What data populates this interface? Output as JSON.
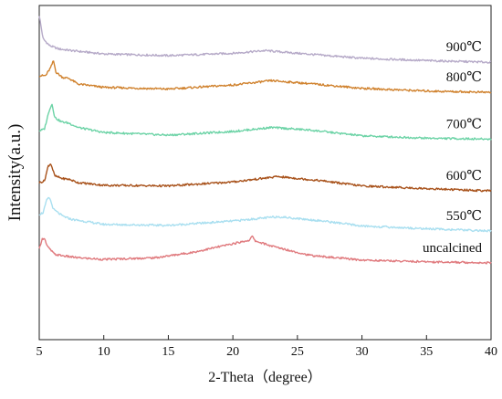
{
  "chart_data": {
    "type": "line",
    "xlabel": "2-Theta（degree）",
    "ylabel": "Intensity(a.u.)",
    "xlim": [
      5,
      40
    ],
    "x_ticks": [
      5,
      10,
      15,
      20,
      25,
      30,
      35,
      40
    ],
    "y_ticks_shown": false,
    "grid": false,
    "series": [
      {
        "name": "900℃",
        "color": "#b6aac8",
        "points": [
          [
            5.0,
            0.97
          ],
          [
            5.3,
            0.9
          ],
          [
            5.8,
            0.88
          ],
          [
            6.5,
            0.87
          ],
          [
            7.5,
            0.865
          ],
          [
            10,
            0.855
          ],
          [
            15,
            0.85
          ],
          [
            20,
            0.857
          ],
          [
            22.5,
            0.865
          ],
          [
            25,
            0.857
          ],
          [
            30,
            0.842
          ],
          [
            35,
            0.835
          ],
          [
            40,
            0.83
          ]
        ]
      },
      {
        "name": "800℃",
        "color": "#d0822e",
        "points": [
          [
            5.0,
            0.79
          ],
          [
            5.5,
            0.79
          ],
          [
            5.9,
            0.815
          ],
          [
            6.1,
            0.835
          ],
          [
            6.3,
            0.8
          ],
          [
            6.8,
            0.785
          ],
          [
            7.3,
            0.782
          ],
          [
            8,
            0.765
          ],
          [
            10,
            0.755
          ],
          [
            15,
            0.75
          ],
          [
            20,
            0.762
          ],
          [
            23,
            0.775
          ],
          [
            26,
            0.766
          ],
          [
            30,
            0.752
          ],
          [
            35,
            0.744
          ],
          [
            40,
            0.74
          ]
        ]
      },
      {
        "name": "700℃",
        "color": "#6cd3a6",
        "points": [
          [
            5.0,
            0.625
          ],
          [
            5.4,
            0.63
          ],
          [
            5.8,
            0.69
          ],
          [
            6.0,
            0.705
          ],
          [
            6.2,
            0.665
          ],
          [
            6.7,
            0.652
          ],
          [
            7.3,
            0.648
          ],
          [
            8,
            0.635
          ],
          [
            10,
            0.62
          ],
          [
            15,
            0.612
          ],
          [
            20,
            0.623
          ],
          [
            23,
            0.635
          ],
          [
            26,
            0.627
          ],
          [
            30,
            0.61
          ],
          [
            35,
            0.603
          ],
          [
            40,
            0.6
          ]
        ]
      },
      {
        "name": "600℃",
        "color": "#a8521b",
        "points": [
          [
            5.0,
            0.47
          ],
          [
            5.4,
            0.475
          ],
          [
            5.7,
            0.52
          ],
          [
            5.9,
            0.527
          ],
          [
            6.2,
            0.49
          ],
          [
            6.8,
            0.482
          ],
          [
            7.3,
            0.48
          ],
          [
            8,
            0.47
          ],
          [
            10,
            0.462
          ],
          [
            15,
            0.46
          ],
          [
            20,
            0.472
          ],
          [
            23.5,
            0.488
          ],
          [
            27,
            0.475
          ],
          [
            30,
            0.46
          ],
          [
            35,
            0.452
          ],
          [
            40,
            0.445
          ]
        ]
      },
      {
        "name": "550℃",
        "color": "#a9dff0",
        "points": [
          [
            5.0,
            0.375
          ],
          [
            5.3,
            0.38
          ],
          [
            5.6,
            0.42
          ],
          [
            5.8,
            0.425
          ],
          [
            6.1,
            0.39
          ],
          [
            6.8,
            0.37
          ],
          [
            7.5,
            0.36
          ],
          [
            10,
            0.345
          ],
          [
            15,
            0.342
          ],
          [
            20,
            0.355
          ],
          [
            23.5,
            0.368
          ],
          [
            27,
            0.355
          ],
          [
            30,
            0.34
          ],
          [
            35,
            0.332
          ],
          [
            40,
            0.325
          ]
        ]
      },
      {
        "name": "uncalcined",
        "color": "#e07a7e",
        "points": [
          [
            5.0,
            0.27
          ],
          [
            5.2,
            0.3
          ],
          [
            5.4,
            0.305
          ],
          [
            5.6,
            0.28
          ],
          [
            6.2,
            0.255
          ],
          [
            7,
            0.25
          ],
          [
            8,
            0.245
          ],
          [
            10,
            0.24
          ],
          [
            14,
            0.245
          ],
          [
            17,
            0.262
          ],
          [
            20,
            0.287
          ],
          [
            21.3,
            0.298
          ],
          [
            21.5,
            0.31
          ],
          [
            21.7,
            0.296
          ],
          [
            23,
            0.28
          ],
          [
            26,
            0.252
          ],
          [
            30,
            0.238
          ],
          [
            35,
            0.233
          ],
          [
            40,
            0.23
          ]
        ]
      }
    ]
  }
}
